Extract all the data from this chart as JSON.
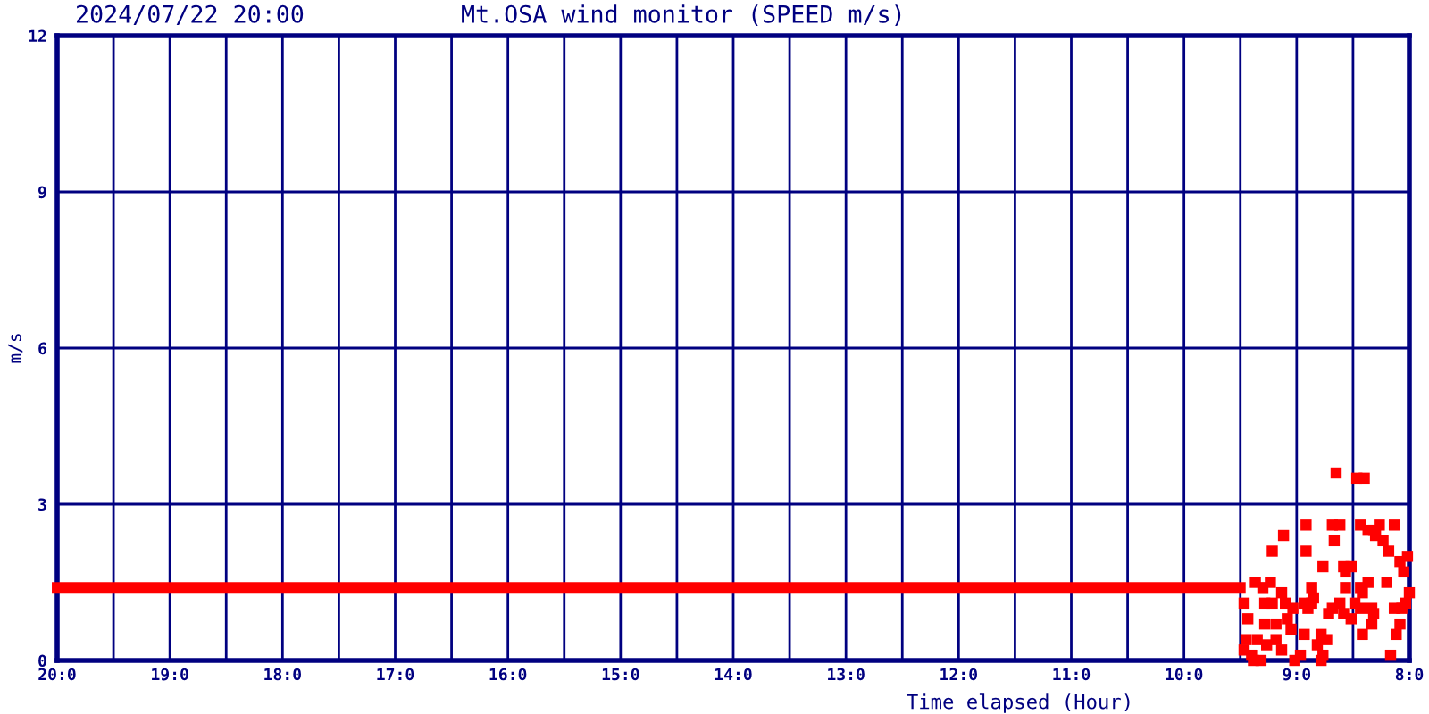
{
  "chart_data": {
    "type": "scatter",
    "title": "Mt.OSA wind monitor (SPEED m/s)",
    "subtitle": "2024/07/22 20:00",
    "xlabel": "Time elapsed (Hour)",
    "ylabel": "m/s",
    "xlim": [
      "2024-07-22T20:00",
      "2024-07-22T08:00"
    ],
    "xticks": [
      {
        "value": "2024-07-22T20:00",
        "label": "20:0"
      },
      {
        "value": "2024-07-22T19:30",
        "label": null
      },
      {
        "value": "2024-07-22T19:00",
        "label": "19:0"
      },
      {
        "value": "2024-07-22T18:30",
        "label": null
      },
      {
        "value": "2024-07-22T18:00",
        "label": "18:0"
      },
      {
        "value": "2024-07-22T17:30",
        "label": null
      },
      {
        "value": "2024-07-22T17:00",
        "label": "17:0"
      },
      {
        "value": "2024-07-22T16:30",
        "label": null
      },
      {
        "value": "2024-07-22T16:00",
        "label": "16:0"
      },
      {
        "value": "2024-07-22T15:30",
        "label": null
      },
      {
        "value": "2024-07-22T15:00",
        "label": "15:0"
      },
      {
        "value": "2024-07-22T14:30",
        "label": null
      },
      {
        "value": "2024-07-22T14:00",
        "label": "14:0"
      },
      {
        "value": "2024-07-22T13:30",
        "label": null
      },
      {
        "value": "2024-07-22T13:00",
        "label": "13:0"
      },
      {
        "value": "2024-07-22T12:30",
        "label": null
      },
      {
        "value": "2024-07-22T12:00",
        "label": "12:0"
      },
      {
        "value": "2024-07-22T11:30",
        "label": null
      },
      {
        "value": "2024-07-22T11:00",
        "label": "11:0"
      },
      {
        "value": "2024-07-22T10:30",
        "label": null
      },
      {
        "value": "2024-07-22T10:00",
        "label": "10:0"
      },
      {
        "value": "2024-07-22T09:30",
        "label": null
      },
      {
        "value": "2024-07-22T09:00",
        "label": "9:0"
      },
      {
        "value": "2024-07-22T08:30",
        "label": null
      },
      {
        "value": "2024-07-22T08:00",
        "label": "8:0"
      }
    ],
    "ylim": [
      0,
      12
    ],
    "yticks": [
      0,
      3,
      6,
      9,
      12
    ],
    "grid": true,
    "series": [
      {
        "type": "line",
        "color": "#ff0000",
        "x": [
          "2024-07-22T20:00",
          "2024-07-22T09:30"
        ],
        "values": [
          1.4,
          1.4
        ]
      },
      {
        "color": "#ff0000",
        "marker": "square",
        "x": [
          "2024-07-22T08:39",
          "2024-07-22T08:28",
          "2024-07-22T08:24",
          "2024-07-22T08:55",
          "2024-07-22T08:41",
          "2024-07-22T08:37",
          "2024-07-22T08:26",
          "2024-07-22T08:22",
          "2024-07-22T08:19",
          "2024-07-22T08:16",
          "2024-07-22T08:08",
          "2024-07-22T08:18",
          "2024-07-22T08:14",
          "2024-07-22T09:07",
          "2024-07-22T08:40",
          "2024-07-22T09:13",
          "2024-07-22T08:55",
          "2024-07-22T08:11",
          "2024-07-22T08:01",
          "2024-07-22T08:05",
          "2024-07-22T08:46",
          "2024-07-22T08:35",
          "2024-07-22T08:31",
          "2024-07-22T08:34",
          "2024-07-22T08:03",
          "2024-07-22T09:22",
          "2024-07-22T09:14",
          "2024-07-22T08:22",
          "2024-07-22T08:12",
          "2024-07-22T09:18",
          "2024-07-22T08:52",
          "2024-07-22T08:34",
          "2024-07-22T08:26",
          "2024-07-22T08:00",
          "2024-07-22T09:08",
          "2024-07-22T08:51",
          "2024-07-22T08:25",
          "2024-07-22T09:28",
          "2024-07-22T09:17",
          "2024-07-22T09:13",
          "2024-07-22T09:06",
          "2024-07-22T08:56",
          "2024-07-22T08:52",
          "2024-07-22T08:37",
          "2024-07-22T08:29",
          "2024-07-22T08:02",
          "2024-07-22T09:02",
          "2024-07-22T08:41",
          "2024-07-22T08:54",
          "2024-07-22T08:26",
          "2024-07-22T08:20",
          "2024-07-22T08:08",
          "2024-07-22T08:04",
          "2024-07-22T08:43",
          "2024-07-22T08:35",
          "2024-07-22T08:31",
          "2024-07-22T09:26",
          "2024-07-22T09:05",
          "2024-07-22T08:19",
          "2024-07-22T09:17",
          "2024-07-22T09:11",
          "2024-07-22T09:03",
          "2024-07-22T08:20",
          "2024-07-22T08:05",
          "2024-07-22T08:56",
          "2024-07-22T08:47",
          "2024-07-22T08:25",
          "2024-07-22T08:07",
          "2024-07-22T09:27",
          "2024-07-22T09:21",
          "2024-07-22T09:11",
          "2024-07-22T09:16",
          "2024-07-22T08:44",
          "2024-07-22T08:49",
          "2024-07-22T09:28",
          "2024-07-22T09:08",
          "2024-07-22T08:46",
          "2024-07-22T09:24",
          "2024-07-22T09:23",
          "2024-07-22T09:19",
          "2024-07-22T09:01",
          "2024-07-22T08:58",
          "2024-07-22T08:47",
          "2024-07-22T08:10"
        ],
        "values": [
          3.6,
          3.5,
          3.5,
          2.6,
          2.6,
          2.6,
          2.6,
          2.5,
          2.5,
          2.6,
          2.6,
          2.4,
          2.3,
          2.4,
          2.3,
          2.1,
          2.1,
          2.1,
          2.0,
          1.9,
          1.8,
          1.8,
          1.8,
          1.7,
          1.7,
          1.5,
          1.5,
          1.5,
          1.5,
          1.4,
          1.4,
          1.4,
          1.4,
          1.3,
          1.3,
          1.2,
          1.3,
          1.1,
          1.1,
          1.1,
          1.1,
          1.1,
          1.1,
          1.1,
          1.1,
          1.1,
          1.0,
          1.0,
          1.0,
          1.0,
          1.0,
          1.0,
          1.0,
          0.9,
          0.9,
          0.8,
          0.8,
          0.8,
          0.9,
          0.7,
          0.7,
          0.6,
          0.7,
          0.7,
          0.5,
          0.5,
          0.5,
          0.5,
          0.4,
          0.4,
          0.4,
          0.3,
          0.4,
          0.3,
          0.2,
          0.2,
          0.1,
          0.1,
          0,
          0,
          0,
          0.1,
          0,
          0.1
        ]
      }
    ]
  }
}
